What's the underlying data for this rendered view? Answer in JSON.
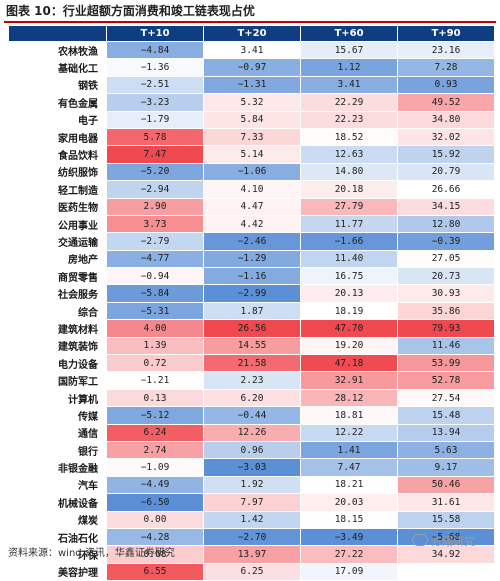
{
  "title": "图表 10：行业超额方面消费和竣工链表现占优",
  "columns": [
    "",
    "T+10",
    "T+20",
    "T+60",
    "T+90"
  ],
  "rows": [
    {
      "name": "农林牧渔",
      "values": [
        "−4.84",
        "3.41",
        "15.67",
        "23.16"
      ]
    },
    {
      "name": "基础化工",
      "values": [
        "−1.36",
        "−0.97",
        "1.12",
        "7.28"
      ]
    },
    {
      "name": "钢铁",
      "values": [
        "−2.51",
        "−1.31",
        "3.41",
        "0.93"
      ]
    },
    {
      "name": "有色金属",
      "values": [
        "−3.23",
        "5.32",
        "22.29",
        "49.52"
      ]
    },
    {
      "name": "电子",
      "values": [
        "−1.79",
        "5.84",
        "22.23",
        "34.80"
      ]
    },
    {
      "name": "家用电器",
      "values": [
        "5.78",
        "7.33",
        "18.52",
        "32.02"
      ]
    },
    {
      "name": "食品饮料",
      "values": [
        "7.47",
        "5.14",
        "12.63",
        "15.92"
      ]
    },
    {
      "name": "纺织服饰",
      "values": [
        "−5.20",
        "−1.06",
        "14.80",
        "20.79"
      ]
    },
    {
      "name": "轻工制造",
      "values": [
        "−2.94",
        "4.10",
        "20.18",
        "26.66"
      ]
    },
    {
      "name": "医药生物",
      "values": [
        "2.90",
        "4.47",
        "27.79",
        "34.15"
      ]
    },
    {
      "name": "公用事业",
      "values": [
        "3.73",
        "4.42",
        "11.77",
        "12.80"
      ]
    },
    {
      "name": "交通运输",
      "values": [
        "−2.79",
        "−2.46",
        "−1.66",
        "−0.39"
      ]
    },
    {
      "name": "房地产",
      "values": [
        "−4.77",
        "−1.29",
        "11.40",
        "27.05"
      ]
    },
    {
      "name": "商贸零售",
      "values": [
        "−0.94",
        "−1.16",
        "16.75",
        "20.73"
      ]
    },
    {
      "name": "社会服务",
      "values": [
        "−5.84",
        "−2.99",
        "20.13",
        "30.93"
      ]
    },
    {
      "name": "综合",
      "values": [
        "−5.31",
        "1.87",
        "18.19",
        "35.86"
      ]
    },
    {
      "name": "建筑材料",
      "values": [
        "4.00",
        "26.56",
        "47.70",
        "79.93"
      ]
    },
    {
      "name": "建筑装饰",
      "values": [
        "1.39",
        "14.55",
        "19.20",
        "11.46"
      ]
    },
    {
      "name": "电力设备",
      "values": [
        "0.72",
        "21.58",
        "47.18",
        "53.99"
      ]
    },
    {
      "name": "国防军工",
      "values": [
        "−1.21",
        "2.23",
        "32.91",
        "52.78"
      ]
    },
    {
      "name": "计算机",
      "values": [
        "0.13",
        "6.20",
        "28.12",
        "27.54"
      ]
    },
    {
      "name": "传媒",
      "values": [
        "−5.12",
        "−0.44",
        "18.81",
        "15.48"
      ]
    },
    {
      "name": "通信",
      "values": [
        "6.24",
        "12.26",
        "12.22",
        "13.94"
      ]
    },
    {
      "name": "银行",
      "values": [
        "2.74",
        "0.96",
        "1.41",
        "5.63"
      ]
    },
    {
      "name": "非银金融",
      "values": [
        "−1.09",
        "−3.03",
        "7.47",
        "9.17"
      ]
    },
    {
      "name": "汽车",
      "values": [
        "−4.49",
        "1.92",
        "18.21",
        "50.46"
      ]
    },
    {
      "name": "机械设备",
      "values": [
        "−6.50",
        "7.97",
        "20.03",
        "31.61"
      ]
    },
    {
      "name": "煤炭",
      "values": [
        "0.00",
        "1.42",
        "18.15",
        "15.58"
      ]
    },
    {
      "name": "石油石化",
      "values": [
        "−4.28",
        "−2.70",
        "−3.49",
        "−5.68"
      ]
    },
    {
      "name": "环保",
      "values": [
        "0.68",
        "13.97",
        "27.22",
        "34.92"
      ]
    },
    {
      "name": "美容护理",
      "values": [
        "6.55",
        "6.25",
        "17.09",
        ""
      ]
    }
  ],
  "footer": "资料来源：wind 资讯，华鑫证券研究",
  "watermark": "方翔研究",
  "colors": {
    "header_bg": "#0f3d82",
    "title_rule": "#c00000",
    "low": "#5b8fd6",
    "mid": "#ffffff",
    "high": "#f0484f"
  }
}
